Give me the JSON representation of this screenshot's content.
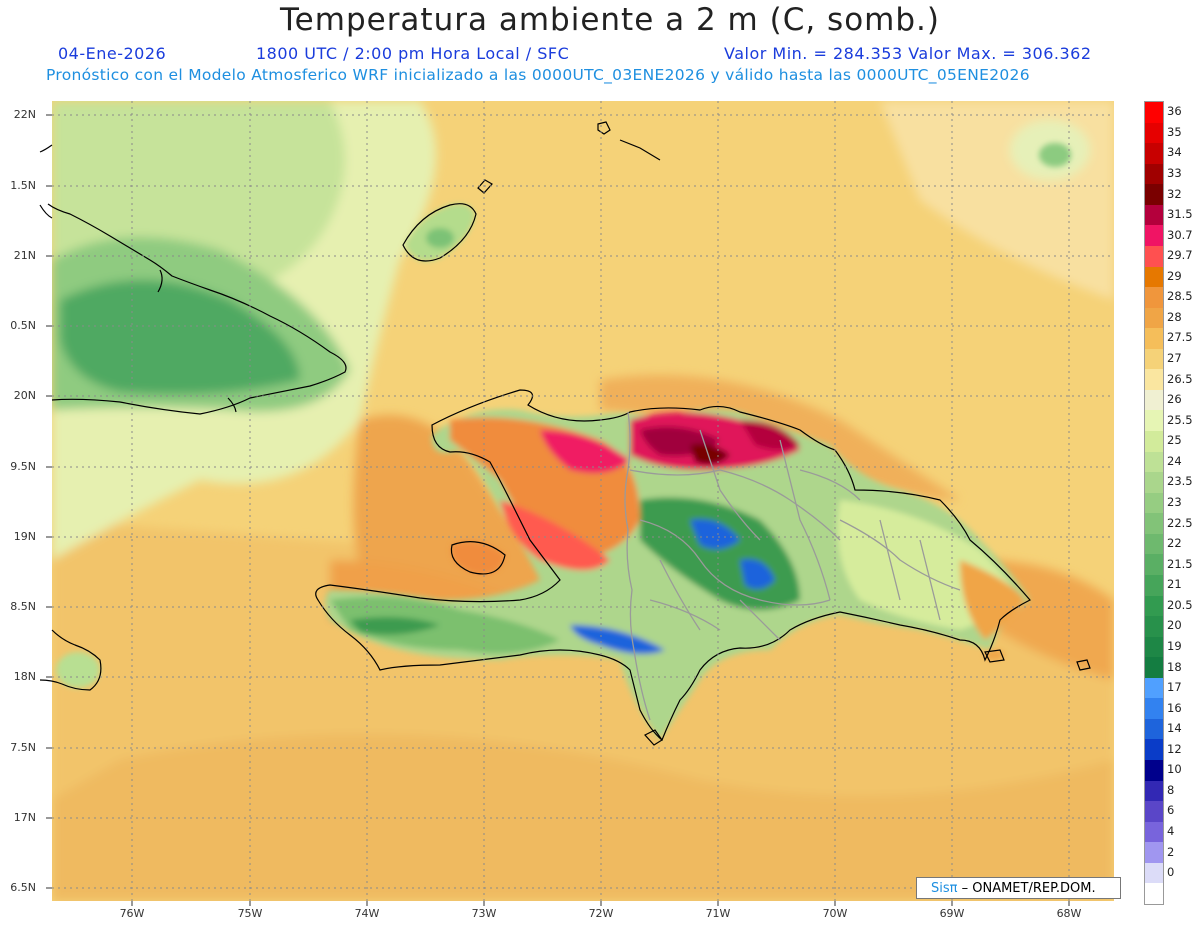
{
  "title": "Temperatura ambiente a 2 m (C, somb.)",
  "date": "04-Ene-2026",
  "time_info": "1800 UTC / 2:00 pm Hora Local / SFC",
  "min_max": "Valor Min. = 284.353  Valor Max. = 306.362",
  "forecast_info": "Pronóstico con el Modelo Atmosferico WRF inicializado a las 0000UTC_03ENE2026 y válido hasta las  0000UTC_05ENE2026",
  "credit_sis": "Sisπ",
  "credit_rest": "– ONAMET/REP.DOM.",
  "lat_labels": [
    "22N",
    "1.5N",
    "21N",
    "0.5N",
    "20N",
    "9.5N",
    "19N",
    "8.5N",
    "18N",
    "7.5N",
    "17N",
    "6.5N"
  ],
  "lon_labels": [
    "76W",
    "75W",
    "74W",
    "73W",
    "72W",
    "71W",
    "70W",
    "69W",
    "68W"
  ],
  "legend": [
    {
      "label": "36",
      "color": "#ff0000"
    },
    {
      "label": "35",
      "color": "#e60000"
    },
    {
      "label": "34",
      "color": "#c80000"
    },
    {
      "label": "33",
      "color": "#a00000"
    },
    {
      "label": "32",
      "color": "#7a0000"
    },
    {
      "label": "31.5",
      "color": "#b4003c"
    },
    {
      "label": "30.7",
      "color": "#f01464"
    },
    {
      "label": "29.7",
      "color": "#ff5050"
    },
    {
      "label": "29",
      "color": "#e67800"
    },
    {
      "label": "28.5",
      "color": "#f0963c"
    },
    {
      "label": "28",
      "color": "#f0a546"
    },
    {
      "label": "27.5",
      "color": "#f5be5a"
    },
    {
      "label": "27",
      "color": "#f5d278"
    },
    {
      "label": "26.5",
      "color": "#fae6a0"
    },
    {
      "label": "26",
      "color": "#f0f0d2"
    },
    {
      "label": "25.5",
      "color": "#e6f5b4"
    },
    {
      "label": "25",
      "color": "#d2eb9b"
    },
    {
      "label": "24",
      "color": "#bee196"
    },
    {
      "label": "23.5",
      "color": "#aad68c"
    },
    {
      "label": "23",
      "color": "#96cd82"
    },
    {
      "label": "22.5",
      "color": "#82c378"
    },
    {
      "label": "22",
      "color": "#6eb96e"
    },
    {
      "label": "21.5",
      "color": "#5aaf64"
    },
    {
      "label": "21",
      "color": "#46a55a"
    },
    {
      "label": "20.5",
      "color": "#329b50"
    },
    {
      "label": "20",
      "color": "#28914b"
    },
    {
      "label": "19",
      "color": "#1e8746"
    },
    {
      "label": "18",
      "color": "#147d41"
    },
    {
      "label": "17",
      "color": "#50a0ff"
    },
    {
      "label": "16",
      "color": "#3282f0"
    },
    {
      "label": "14",
      "color": "#1e64dc"
    },
    {
      "label": "12",
      "color": "#0a3cc8"
    },
    {
      "label": "10",
      "color": "#00008c"
    },
    {
      "label": "8",
      "color": "#3228b4"
    },
    {
      "label": "6",
      "color": "#5a46c8"
    },
    {
      "label": "4",
      "color": "#7864dc"
    },
    {
      "label": "2",
      "color": "#a096f0"
    },
    {
      "label": "0",
      "color": "#dcdcf8"
    },
    {
      "label": "",
      "color": "#ffffff"
    }
  ]
}
